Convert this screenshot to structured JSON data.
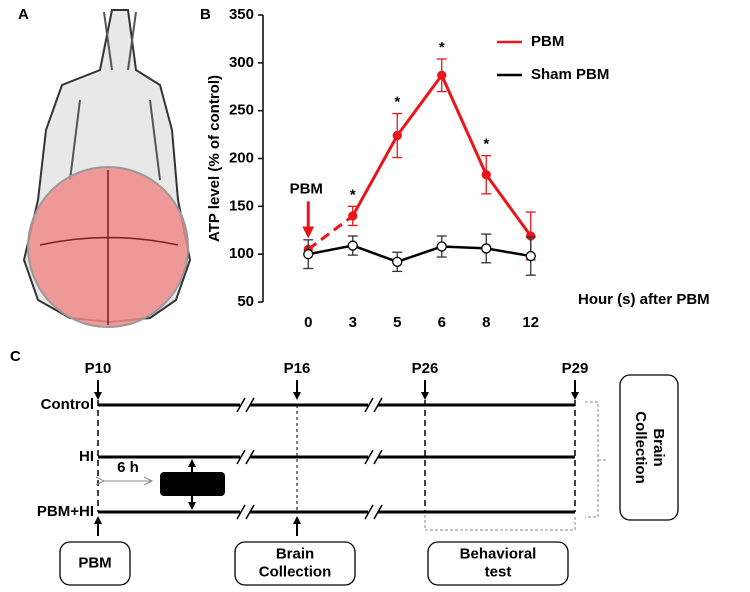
{
  "panel_labels": [
    "A",
    "B",
    "C"
  ],
  "chart_data": {
    "type": "line",
    "y_label": "ATP level (% of control)",
    "x_label": "Hour (s) after PBM",
    "categories": [
      "0",
      "3",
      "5",
      "6",
      "8",
      "12"
    ],
    "ylim": [
      50,
      350
    ],
    "yticks": [
      50,
      100,
      150,
      200,
      250,
      300,
      350
    ],
    "annotation": "PBM",
    "series": [
      {
        "name": "PBM",
        "color": "#e8161b",
        "values": [
          105,
          140,
          224,
          287,
          183,
          119
        ],
        "errors": [
          null,
          10,
          23,
          17,
          20,
          25
        ],
        "value_annotations": [
          null,
          "*",
          "*",
          "*",
          "*",
          null
        ]
      },
      {
        "name": "Sham PBM",
        "color": "#000000",
        "values": [
          100,
          109,
          92,
          108,
          106,
          98
        ],
        "errors": [
          15,
          10,
          10,
          11,
          15,
          20
        ]
      }
    ]
  },
  "timeline": {
    "timepoints": [
      "P10",
      "P16",
      "P26",
      "P29"
    ],
    "groups": [
      "Control",
      "HI",
      "PBM+HI"
    ],
    "interval_label": "6 h",
    "injury_label": "HI",
    "boxes": [
      {
        "lines": [
          "PBM"
        ]
      },
      {
        "lines": [
          "Brain",
          "Collection"
        ]
      },
      {
        "lines": [
          "Behavioral",
          "test"
        ]
      },
      {
        "lines": [
          "Brain",
          "Collection"
        ]
      }
    ]
  }
}
